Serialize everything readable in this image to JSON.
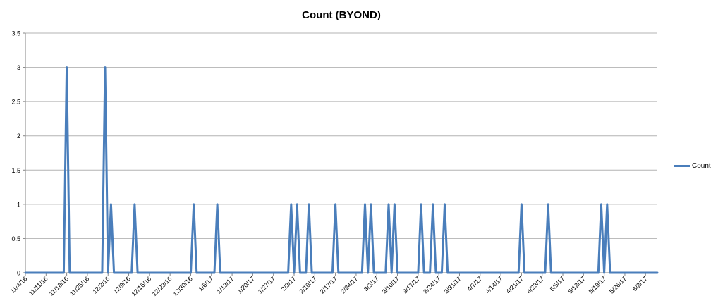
{
  "chart_data": {
    "type": "line",
    "title": "Count (BYOND)",
    "xlabel": "",
    "ylabel": "",
    "ylim": [
      0,
      3.5
    ],
    "yticks": [
      "0",
      "0.5",
      "1",
      "1.5",
      "2",
      "2.5",
      "3",
      "3.5"
    ],
    "x_range": [
      "11/4/16",
      "6/6/17"
    ],
    "xticks": [
      "11/4/16",
      "11/11/16",
      "11/18/16",
      "11/25/16",
      "12/2/16",
      "12/9/16",
      "12/16/16",
      "12/23/16",
      "12/30/16",
      "1/6/17",
      "1/13/17",
      "1/20/17",
      "1/27/17",
      "2/3/17",
      "2/10/17",
      "2/17/17",
      "2/24/17",
      "3/3/17",
      "3/10/17",
      "3/17/17",
      "3/24/17",
      "3/31/17",
      "4/7/17",
      "4/14/17",
      "4/21/17",
      "4/28/17",
      "5/5/17",
      "5/12/17",
      "5/19/17",
      "5/26/17",
      "6/2/17"
    ],
    "grid": true,
    "legend_position": "right",
    "series": [
      {
        "name": "Count",
        "color": "#4a7ebb",
        "points": [
          [
            "11/17/16",
            0
          ],
          [
            "11/18/16",
            3
          ],
          [
            "11/19/16",
            0
          ],
          [
            "11/30/16",
            0
          ],
          [
            "12/1/16",
            3
          ],
          [
            "12/2/16",
            0
          ],
          [
            "12/3/16",
            1
          ],
          [
            "12/4/16",
            0
          ],
          [
            "12/10/16",
            0
          ],
          [
            "12/11/16",
            1
          ],
          [
            "12/12/16",
            0
          ],
          [
            "12/30/16",
            0
          ],
          [
            "12/31/16",
            1
          ],
          [
            "1/1/17",
            0
          ],
          [
            "1/7/17",
            0
          ],
          [
            "1/8/17",
            1
          ],
          [
            "1/9/17",
            0
          ],
          [
            "2/1/17",
            0
          ],
          [
            "2/2/17",
            1
          ],
          [
            "2/3/17",
            0
          ],
          [
            "2/4/17",
            1
          ],
          [
            "2/5/17",
            0
          ],
          [
            "2/7/17",
            0
          ],
          [
            "2/8/17",
            1
          ],
          [
            "2/9/17",
            0
          ],
          [
            "2/16/17",
            0
          ],
          [
            "2/17/17",
            1
          ],
          [
            "2/18/17",
            0
          ],
          [
            "2/26/17",
            0
          ],
          [
            "2/27/17",
            1
          ],
          [
            "2/28/17",
            0
          ],
          [
            "3/1/17",
            1
          ],
          [
            "3/2/17",
            0
          ],
          [
            "3/6/17",
            0
          ],
          [
            "3/7/17",
            1
          ],
          [
            "3/8/17",
            0
          ],
          [
            "3/9/17",
            1
          ],
          [
            "3/10/17",
            0
          ],
          [
            "3/17/17",
            0
          ],
          [
            "3/18/17",
            1
          ],
          [
            "3/19/17",
            0
          ],
          [
            "3/21/17",
            0
          ],
          [
            "3/22/17",
            1
          ],
          [
            "3/23/17",
            0
          ],
          [
            "3/25/17",
            0
          ],
          [
            "3/26/17",
            1
          ],
          [
            "3/27/17",
            0
          ],
          [
            "4/20/17",
            0
          ],
          [
            "4/21/17",
            1
          ],
          [
            "4/22/17",
            0
          ],
          [
            "4/29/17",
            0
          ],
          [
            "4/30/17",
            1
          ],
          [
            "5/1/17",
            0
          ],
          [
            "5/17/17",
            0
          ],
          [
            "5/18/17",
            1
          ],
          [
            "5/19/17",
            0
          ],
          [
            "5/20/17",
            1
          ],
          [
            "5/21/17",
            0
          ]
        ]
      }
    ]
  }
}
